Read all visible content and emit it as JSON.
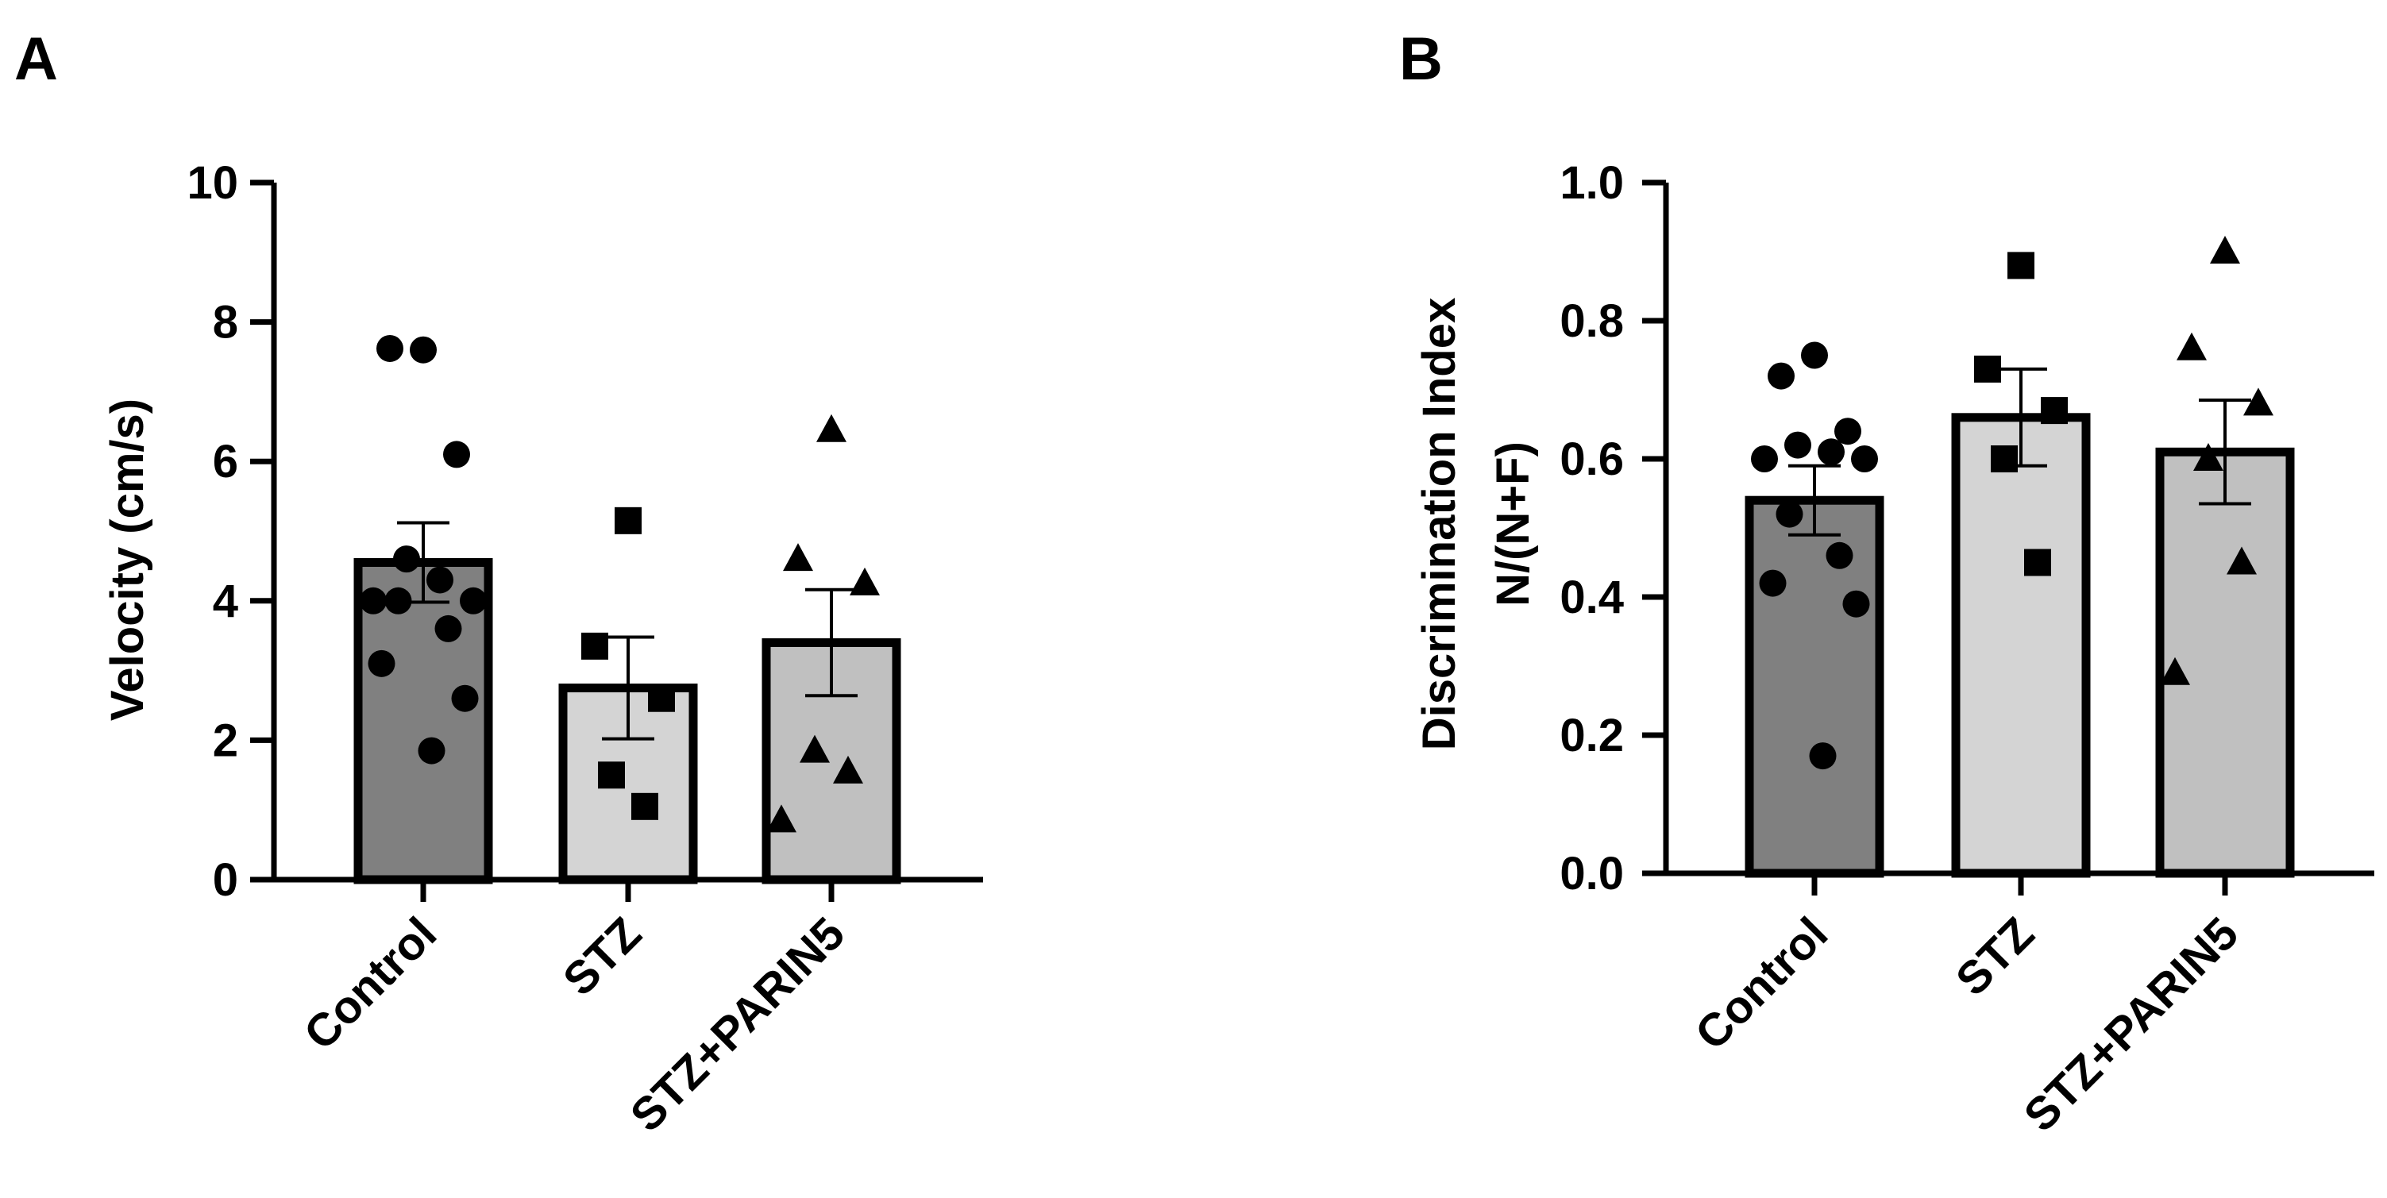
{
  "chart_data": [
    {
      "panel_label": "A",
      "type": "bar",
      "categories": [
        "Control",
        "STZ",
        "STZ+PARIN5"
      ],
      "means": [
        4.55,
        2.75,
        3.4
      ],
      "sem": [
        0.57,
        0.73,
        0.76
      ],
      "bar_colors": [
        "#808080",
        "#d4d4d4",
        "#c0c0c0"
      ],
      "markers": [
        "circle",
        "square",
        "triangle"
      ],
      "points": [
        [
          7.6,
          7.62,
          6.1,
          4.6,
          4.3,
          4.0,
          4.0,
          4.0,
          3.6,
          3.1,
          2.6,
          1.85
        ],
        [
          5.15,
          3.35,
          2.6,
          1.5,
          1.05
        ],
        [
          6.45,
          4.6,
          4.25,
          1.85,
          1.55,
          0.85
        ]
      ],
      "title": "",
      "xlabel": "",
      "ylabel": "Velocity (cm/s)",
      "ylim": [
        0,
        10
      ],
      "yticks": [
        0,
        2,
        4,
        6,
        8,
        10
      ],
      "ytick_labels": [
        "0",
        "2",
        "4",
        "6",
        "8",
        "10"
      ]
    },
    {
      "panel_label": "B",
      "type": "bar",
      "categories": [
        "Control",
        "STZ",
        "STZ+PARIN5"
      ],
      "means": [
        0.54,
        0.66,
        0.61
      ],
      "sem": [
        0.05,
        0.07,
        0.075
      ],
      "bar_colors": [
        "#808080",
        "#d4d4d4",
        "#c0c0c0"
      ],
      "markers": [
        "circle",
        "square",
        "triangle"
      ],
      "points": [
        [
          0.75,
          0.72,
          0.64,
          0.62,
          0.61,
          0.6,
          0.6,
          0.52,
          0.46,
          0.42,
          0.39,
          0.17
        ],
        [
          0.88,
          0.73,
          0.67,
          0.6,
          0.45
        ],
        [
          0.9,
          0.76,
          0.68,
          0.6,
          0.45,
          0.29
        ]
      ],
      "title": "",
      "xlabel": "",
      "ylabel_lines": [
        "Discrimination Index",
        "N/(N+F)"
      ],
      "ylim": [
        0,
        1.0
      ],
      "yticks": [
        0,
        0.2,
        0.4,
        0.6,
        0.8,
        1.0
      ],
      "ytick_labels": [
        "0.0",
        "0.2",
        "0.4",
        "0.6",
        "0.8",
        "1.0"
      ]
    }
  ]
}
